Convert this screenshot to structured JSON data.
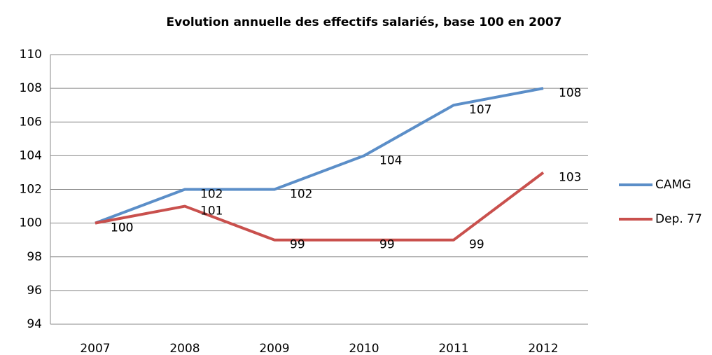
{
  "chart_data": {
    "type": "line",
    "title": "Evolution annuelle des effectifs salariés, base 100 en 2007",
    "categories": [
      "2007",
      "2008",
      "2009",
      "2010",
      "2011",
      "2012"
    ],
    "series": [
      {
        "name": "CAMG",
        "color": "#5b8ec8",
        "values": [
          100,
          102,
          102,
          104,
          107,
          108
        ]
      },
      {
        "name": "Dep. 77",
        "color": "#c9504d",
        "values": [
          100,
          101,
          99,
          99,
          99,
          103
        ]
      }
    ],
    "ylim": [
      94,
      110
    ],
    "yticks": [
      94,
      96,
      98,
      100,
      102,
      104,
      106,
      108,
      110
    ],
    "grid": true,
    "legend": "right",
    "data_labels": true
  }
}
